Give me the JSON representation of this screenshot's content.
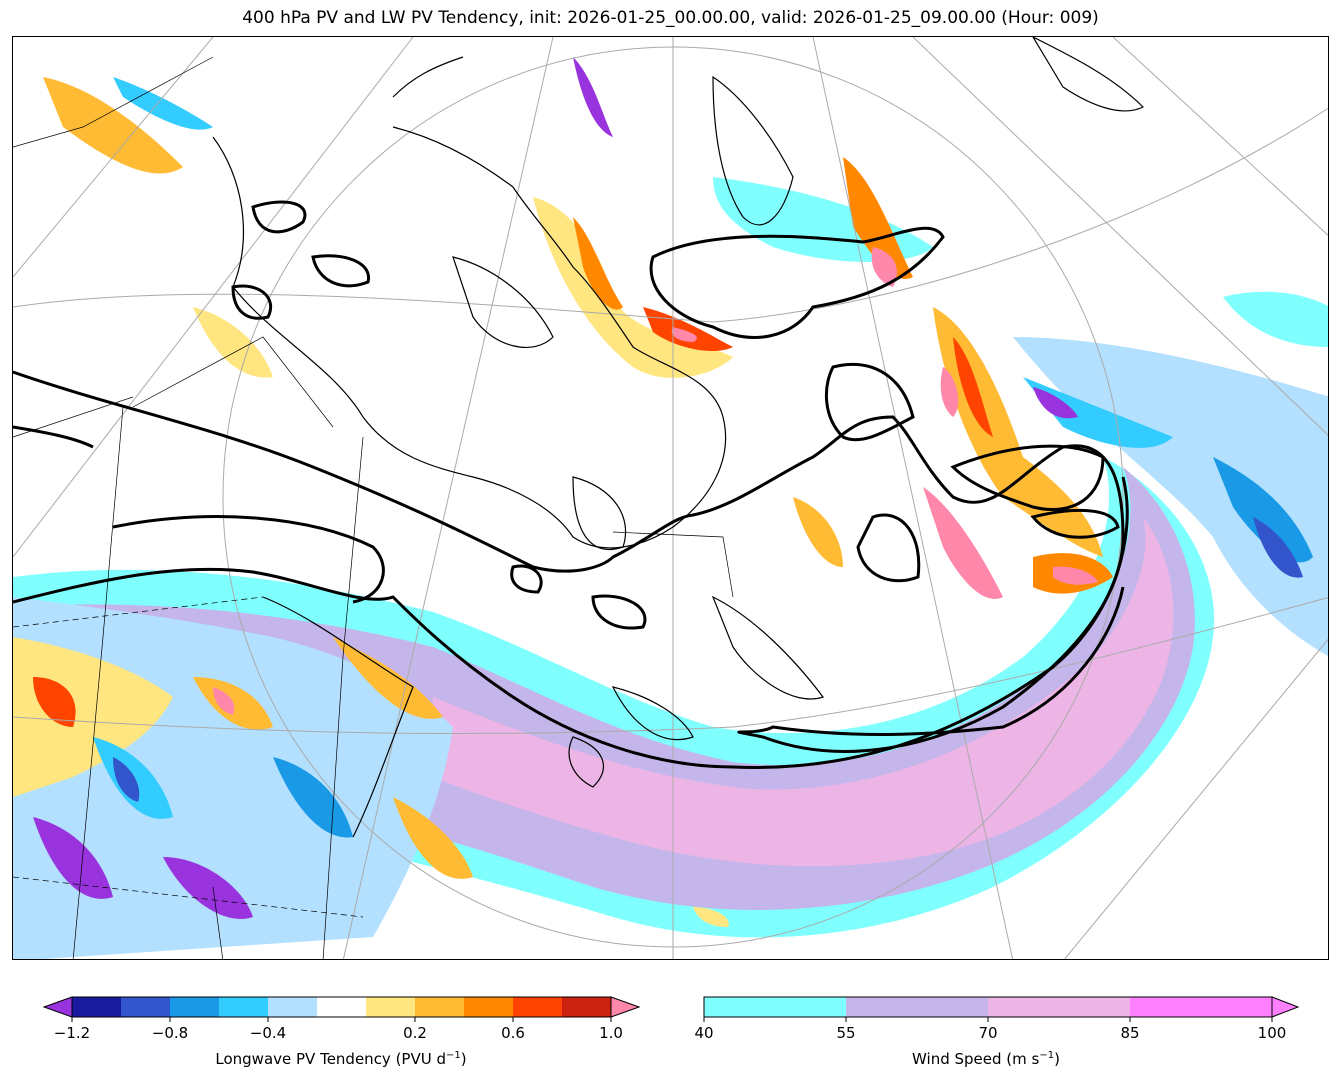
{
  "title": "400 hPa PV and LW PV Tendency, init: 2026-01-25_00.00.00, valid: 2026-01-25_09.00.00 (Hour: 009)",
  "colors": {
    "pv_tendency": [
      "#9933dd",
      "#1a1a9e",
      "#3355cc",
      "#1a99e6",
      "#33ccff",
      "#b3e0ff",
      "#ffffff",
      "#ffe680",
      "#ffbb33",
      "#ff8800",
      "#ff4400",
      "#cc2211",
      "#ff88aa"
    ],
    "wind_speed": [
      "#80ffff",
      "#c4b5ea",
      "#ecb5e6",
      "#ff80ff"
    ],
    "contour": "#000000"
  },
  "colorbar_pv": {
    "ticks": [
      "−1.2",
      "−0.8",
      "−0.4",
      "0.2",
      "0.6",
      "1.0"
    ],
    "label_main": "Longwave PV Tendency (PVU d",
    "label_exp": "−1",
    "label_end": ")"
  },
  "colorbar_wind": {
    "ticks": [
      "40",
      "55",
      "70",
      "85",
      "100"
    ],
    "label_main": "Wind Speed (m s",
    "label_exp": "−1",
    "label_end": ")"
  }
}
